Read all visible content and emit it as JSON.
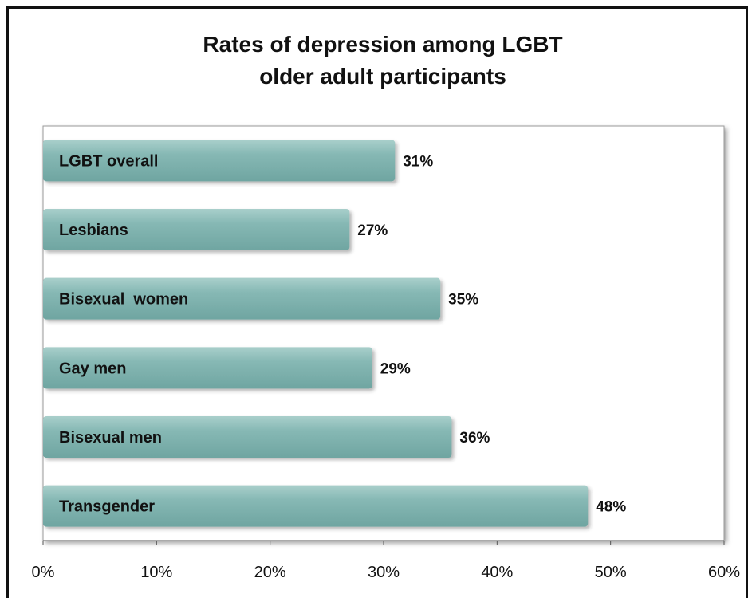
{
  "chart_data": {
    "type": "bar",
    "orientation": "horizontal",
    "title_lines": [
      "Rates of depression among LGBT",
      "older adult participants"
    ],
    "categories": [
      "LGBT overall",
      "Lesbians",
      "Bisexual  women",
      "Gay men",
      "Bisexual men",
      "Transgender"
    ],
    "values": [
      31,
      27,
      35,
      29,
      36,
      48
    ],
    "data_labels": [
      "31%",
      "27%",
      "35%",
      "29%",
      "36%",
      "48%"
    ],
    "xlim": [
      0,
      60
    ],
    "x_ticks": [
      0,
      10,
      20,
      30,
      40,
      50,
      60
    ],
    "x_tick_labels": [
      "0%",
      "10%",
      "20%",
      "30%",
      "40%",
      "50%",
      "60%"
    ],
    "bar_color": "#7fb2ae",
    "grid": false,
    "legend": "none",
    "category_labels_position": "inside-bar"
  }
}
